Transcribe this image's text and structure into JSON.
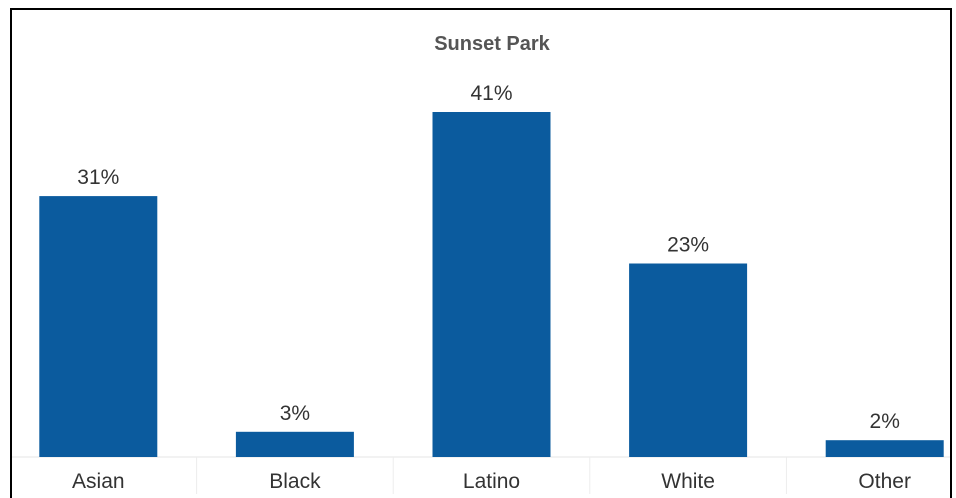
{
  "chart_data": {
    "type": "bar",
    "title": "Sunset Park",
    "categories": [
      "Asian",
      "Black",
      "Latino",
      "White",
      "Other"
    ],
    "values": [
      31,
      3,
      41,
      23,
      2
    ],
    "value_labels": [
      "31%",
      "3%",
      "41%",
      "23%",
      "2%"
    ],
    "unit": "%",
    "ylim": [
      0,
      41
    ],
    "xlabel": "",
    "ylabel": "",
    "grid": false,
    "bar_color": "#0b5b9e"
  }
}
